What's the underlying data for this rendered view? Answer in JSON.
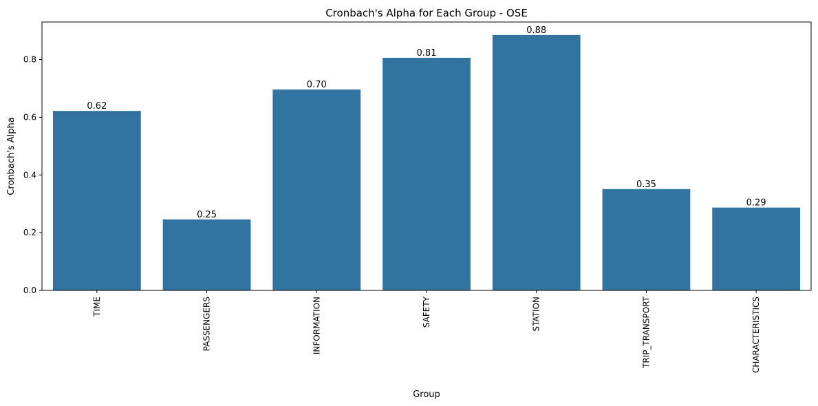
{
  "chart_data": {
    "type": "bar",
    "title": "Cronbach's Alpha for Each Group - OSE",
    "xlabel": "Group",
    "ylabel": "Cronbach's Alpha",
    "categories": [
      "TIME",
      "PASSENGERS",
      "INFORMATION",
      "SAFETY",
      "STATION",
      "TRIP_TRANSPORT",
      "CHARACTERISTICS"
    ],
    "values": [
      0.622,
      0.246,
      0.696,
      0.806,
      0.885,
      0.351,
      0.287
    ],
    "value_labels": [
      "0.62",
      "0.25",
      "0.70",
      "0.81",
      "0.88",
      "0.35",
      "0.29"
    ],
    "ylim": [
      0,
      0.93
    ],
    "yticks": [
      0.0,
      0.2,
      0.4,
      0.6,
      0.8
    ],
    "ytick_labels": [
      "0.0",
      "0.2",
      "0.4",
      "0.6",
      "0.8"
    ],
    "grid": false,
    "bar_color": "#3274a1"
  }
}
